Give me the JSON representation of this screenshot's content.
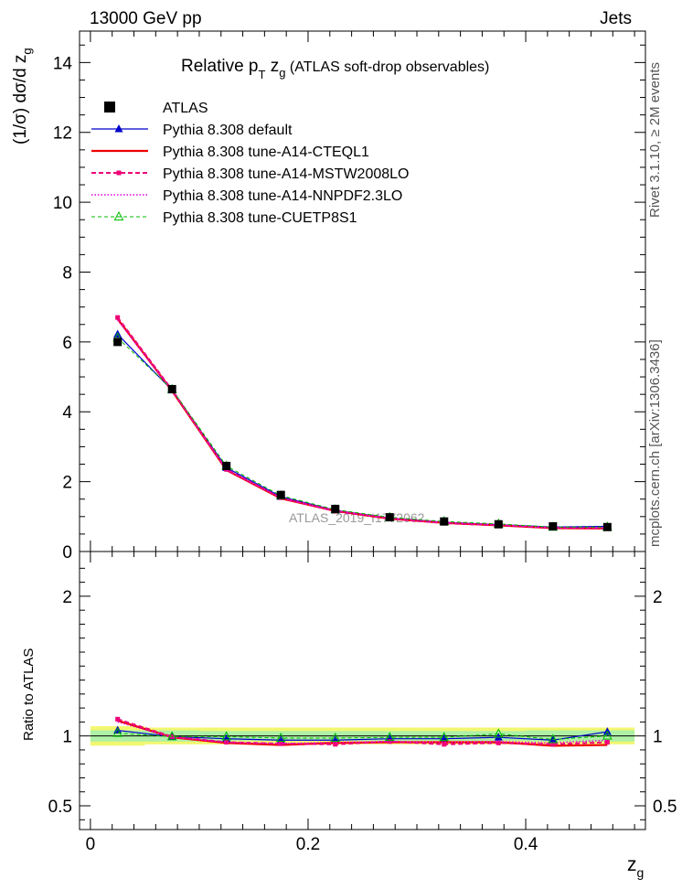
{
  "header": {
    "left": "13000 GeV pp",
    "right": "Jets"
  },
  "side_labels": {
    "rivet": "Rivet 3.1.10, ≥ 2M events",
    "mcplots": "mcplots.cern.ch [arXiv:1306.3436]"
  },
  "chart_data": [
    {
      "type": "line",
      "title": "Relative p_T z_g (ATLAS soft-drop observables)",
      "title_parts": {
        "main": "Relative p",
        "sub": "T",
        "mid": " z",
        "sub2": "g",
        "tail": " (ATLAS soft-drop observables)"
      },
      "ylabel": "(1/σ) dσ/d z_g",
      "xlabel": "z_g",
      "watermark": "ATLAS_2019_I1772062",
      "xlim": [
        -0.01,
        0.51
      ],
      "ylim": [
        0,
        14.9
      ],
      "x_ticks": [
        0,
        0.2,
        0.4
      ],
      "x_tick_labels": [
        "0",
        "0.2",
        "0.4"
      ],
      "y_ticks": [
        0,
        2,
        4,
        6,
        8,
        10,
        12,
        14
      ],
      "y_tick_labels": [
        "0",
        "2",
        "4",
        "6",
        "8",
        "10",
        "12",
        "14"
      ],
      "legend_position": "top-left",
      "x": [
        0.025,
        0.075,
        0.125,
        0.175,
        0.225,
        0.275,
        0.325,
        0.375,
        0.425,
        0.475
      ],
      "data": {
        "name": "ATLAS",
        "values": [
          6.0,
          4.65,
          2.45,
          1.62,
          1.22,
          0.98,
          0.86,
          0.78,
          0.72,
          0.7
        ]
      },
      "series": [
        {
          "name": "Pythia 8.308 default",
          "color": "#0000cc",
          "style": "solid",
          "marker": "triangle-filled",
          "values": [
            6.22,
            4.62,
            2.4,
            1.57,
            1.18,
            0.96,
            0.84,
            0.77,
            0.7,
            0.72
          ]
        },
        {
          "name": "Pythia 8.308 tune-A14-CTEQL1",
          "color": "#ee0000",
          "style": "solid-thick",
          "marker": "none",
          "values": [
            6.66,
            4.6,
            2.33,
            1.52,
            1.16,
            0.94,
            0.82,
            0.75,
            0.67,
            0.66
          ]
        },
        {
          "name": "Pythia 8.308 tune-A14-MSTW2008LO",
          "color": "#ee0077",
          "style": "dashed",
          "marker": "square-small",
          "values": [
            6.7,
            4.63,
            2.35,
            1.54,
            1.15,
            0.95,
            0.81,
            0.75,
            0.68,
            0.67
          ]
        },
        {
          "name": "Pythia 8.308 tune-A14-NNPDF2.3LO",
          "color": "#dd00dd",
          "style": "dotted",
          "marker": "none",
          "values": [
            6.62,
            4.61,
            2.34,
            1.53,
            1.17,
            0.95,
            0.83,
            0.76,
            0.68,
            0.68
          ]
        },
        {
          "name": "Pythia 8.308 tune-CUETP8S1",
          "color": "#00bb00",
          "style": "dashed-thin",
          "marker": "triangle-open",
          "values": [
            6.12,
            4.64,
            2.45,
            1.6,
            1.2,
            0.98,
            0.86,
            0.79,
            0.7,
            0.7
          ]
        }
      ]
    },
    {
      "type": "line",
      "ylabel": "Ratio to ATLAS",
      "xlabel": "z_g",
      "xlim": [
        -0.01,
        0.51
      ],
      "ylim": [
        0.33,
        2.32
      ],
      "y_ticks": [
        0.5,
        1,
        2
      ],
      "y_tick_labels": [
        "0.5",
        "1",
        "2"
      ],
      "x_ticks": [
        0,
        0.2,
        0.4
      ],
      "x_tick_labels": [
        "0",
        "0.2",
        "0.4"
      ],
      "x": [
        0.025,
        0.075,
        0.125,
        0.175,
        0.225,
        0.275,
        0.325,
        0.375,
        0.425,
        0.475
      ],
      "bands": {
        "yellow_half": [
          0.07,
          0.06,
          0.06,
          0.06,
          0.06,
          0.06,
          0.06,
          0.06,
          0.06,
          0.06
        ],
        "green_half": [
          0.04,
          0.04,
          0.035,
          0.035,
          0.035,
          0.035,
          0.035,
          0.035,
          0.04,
          0.04
        ]
      },
      "series": [
        {
          "name": "Pythia 8.308 default",
          "color": "#0000cc",
          "values": [
            1.04,
            0.995,
            0.98,
            0.97,
            0.97,
            0.98,
            0.98,
            0.99,
            0.97,
            1.03
          ]
        },
        {
          "name": "Pythia 8.308 tune-A14-CTEQL1",
          "color": "#ee0000",
          "values": [
            1.11,
            0.99,
            0.95,
            0.935,
            0.95,
            0.955,
            0.955,
            0.955,
            0.93,
            0.935
          ]
        },
        {
          "name": "Pythia 8.308 tune-A14-MSTW2008LO",
          "color": "#ee0077",
          "values": [
            1.12,
            0.995,
            0.955,
            0.945,
            0.94,
            0.96,
            0.94,
            0.95,
            0.94,
            0.955
          ]
        },
        {
          "name": "Pythia 8.308 tune-A14-NNPDF2.3LO",
          "color": "#dd00dd",
          "values": [
            1.1,
            0.99,
            0.955,
            0.945,
            0.955,
            0.96,
            0.955,
            0.96,
            0.95,
            0.97
          ]
        },
        {
          "name": "Pythia 8.308 tune-CUETP8S1",
          "color": "#00bb00",
          "values": [
            1.02,
            0.995,
            0.995,
            0.985,
            0.985,
            0.99,
            0.99,
            1.015,
            0.975,
            1.0
          ]
        }
      ]
    }
  ]
}
